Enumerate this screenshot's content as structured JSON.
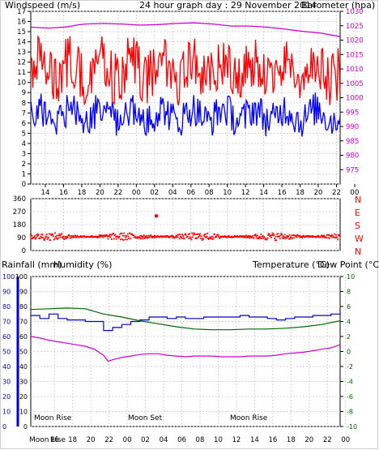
{
  "colors": {
    "wind_gust": "#ff0000",
    "wind_avg": "#0000ff",
    "barometer": "#cc00cc",
    "direction": "#ff0000",
    "rain": "#cc0000",
    "humidity": "#0000cc",
    "temperature": "#006600",
    "dewpoint": "#cc00cc",
    "frame": "#000000",
    "grid": "#c8c8c8",
    "moon": "#e6d300"
  },
  "labels": {
    "wind_title": "Windspeed (m/s)",
    "graph_title": "24 hour graph day : 29 November 2014",
    "baro_title": "Barometer (hpa)",
    "rain_title": "Rainfall (mm)",
    "humidity_title": "Humidity (%)",
    "temp_title": "Temperature (°C)",
    "dew_title": "Dew Point (°C)",
    "moon_rise_1": "Moon Rise",
    "moon_set": "Moon Set",
    "moon_rise_2": "Moon Rise",
    "moon_left": "Moon",
    "moon_rise_axis": "Rise"
  },
  "chart_data": [
    {
      "id": "wind-baro",
      "type": "line",
      "title": "24 hour graph day : 29 November 2014",
      "ylabel": "Windspeed (m/s)",
      "ylabel_right": "Barometer (hpa)",
      "ylim": [
        0,
        17
      ],
      "ylim_right": [
        970,
        1030
      ],
      "yticks": [
        0,
        1,
        2,
        3,
        4,
        5,
        6,
        7,
        8,
        9,
        10,
        11,
        12,
        13,
        14,
        15,
        16,
        17
      ],
      "yticks_right": [
        975,
        980,
        985,
        990,
        995,
        1000,
        1005,
        1010,
        1015,
        1020,
        1025,
        1030
      ],
      "xticks": [
        "14",
        "16",
        "18",
        "20",
        "22",
        "00",
        "02",
        "04",
        "06",
        "08",
        "10",
        "12",
        "14",
        "16",
        "18",
        "20",
        "22",
        "00"
      ],
      "series": [
        {
          "name": "gust",
          "color": "#ff0000",
          "base": 11.2,
          "amp": 2.6,
          "min": 7.0,
          "max": 17.0
        },
        {
          "name": "average",
          "color": "#0000ff",
          "base": 6.8,
          "amp": 1.7,
          "min": 2.4,
          "max": 10.5
        },
        {
          "name": "barometer",
          "color": "#cc00cc",
          "axis": "right",
          "x": [
            0,
            2,
            4,
            5,
            6,
            8,
            10,
            12,
            14,
            16,
            18,
            20,
            22,
            24,
            26,
            28,
            30,
            32,
            34
          ],
          "values": [
            1024.5,
            1024.2,
            1024.6,
            1025.2,
            1025.6,
            1025.8,
            1025.6,
            1025.2,
            1025.4,
            1025.8,
            1026.0,
            1025.6,
            1024.9,
            1024.9,
            1024.5,
            1023.8,
            1023.0,
            1022.4,
            1021.2
          ]
        }
      ]
    },
    {
      "id": "direction",
      "type": "scatter",
      "yticks": [
        0,
        90,
        180,
        270,
        360
      ],
      "right_labels": [
        "N",
        "W",
        "S",
        "E",
        "N"
      ],
      "ylim": [
        0,
        360
      ],
      "series": [
        {
          "name": "direction",
          "color": "#ff0000",
          "base": 97,
          "spread": 26,
          "outlier": {
            "x": 13.8,
            "y": 240
          }
        }
      ]
    },
    {
      "id": "rain-hum-temp",
      "type": "line",
      "yticks_rain": [
        0,
        10,
        20,
        30,
        40,
        50,
        60,
        70,
        80,
        90,
        100
      ],
      "yticks_hum": [
        0,
        10,
        20,
        30,
        40,
        50,
        60,
        70,
        80,
        90,
        100
      ],
      "yticks_temp": [
        -10,
        -8,
        -6,
        -4,
        -2,
        0,
        2,
        4,
        6,
        8,
        10
      ],
      "ylim_hum": [
        0,
        100
      ],
      "ylim_temp": [
        -10,
        10
      ],
      "xticks": [
        "16",
        "18",
        "20",
        "22",
        "00",
        "02",
        "04",
        "06",
        "08",
        "10",
        "12",
        "14",
        "16",
        "18",
        "20",
        "22",
        "00"
      ],
      "series": [
        {
          "name": "humidity",
          "color": "#0000cc",
          "axis": "humidity",
          "x": [
            0,
            1,
            2,
            3,
            4,
            5,
            6,
            7,
            8,
            9,
            10,
            11,
            12,
            13,
            14,
            15,
            16,
            17,
            18,
            19,
            20,
            21,
            22,
            23,
            24,
            25,
            26,
            27,
            28,
            29,
            30,
            31,
            32,
            33,
            34
          ],
          "values": [
            74,
            72,
            75,
            72,
            71,
            71,
            70,
            70,
            64,
            66,
            68,
            70,
            71,
            73,
            73,
            72,
            73,
            72,
            72,
            73,
            73,
            73,
            73,
            74,
            73,
            73,
            72,
            71,
            72,
            73,
            73,
            74,
            74,
            75,
            78
          ]
        },
        {
          "name": "temperature",
          "color": "#006600",
          "axis": "temp",
          "x": [
            0,
            2,
            4,
            6,
            8,
            10,
            12,
            14,
            16,
            18,
            20,
            22,
            24,
            26,
            28,
            30,
            32,
            34
          ],
          "values": [
            5.6,
            5.7,
            5.8,
            5.7,
            5.0,
            4.6,
            4.1,
            3.7,
            3.3,
            3.0,
            2.9,
            2.9,
            3.0,
            3.0,
            3.1,
            3.3,
            3.6,
            4.1
          ]
        },
        {
          "name": "dewpoint",
          "color": "#cc00cc",
          "axis": "temp",
          "x": [
            0,
            1,
            2,
            3,
            4,
            5,
            6,
            7,
            8,
            8.5,
            9,
            10,
            11,
            12,
            13,
            14,
            15,
            16,
            17,
            18,
            19,
            20,
            21,
            22,
            23,
            24,
            25,
            26,
            27,
            28,
            29,
            30,
            31,
            32,
            33,
            34
          ],
          "values": [
            2.0,
            1.8,
            1.5,
            1.3,
            1.1,
            0.9,
            0.7,
            0.3,
            -0.5,
            -1.3,
            -1.1,
            -0.8,
            -0.6,
            -0.4,
            -0.3,
            -0.3,
            -0.5,
            -0.6,
            -0.7,
            -0.6,
            -0.6,
            -0.6,
            -0.7,
            -0.7,
            -0.7,
            -0.6,
            -0.6,
            -0.6,
            -0.5,
            -0.3,
            -0.2,
            -0.1,
            0.1,
            0.3,
            0.5,
            0.9
          ]
        }
      ]
    }
  ]
}
